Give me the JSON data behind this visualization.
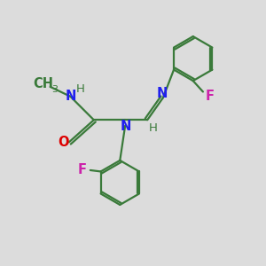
{
  "bg_color": "#dcdcdc",
  "bond_color": "#3a7a3a",
  "N_color": "#2020ee",
  "O_color": "#dd0000",
  "F_color": "#cc22aa",
  "H_color": "#3a7a3a",
  "figsize": [
    3.0,
    3.0
  ],
  "dpi": 100,
  "xlim": [
    0,
    10
  ],
  "ylim": [
    0,
    10
  ]
}
